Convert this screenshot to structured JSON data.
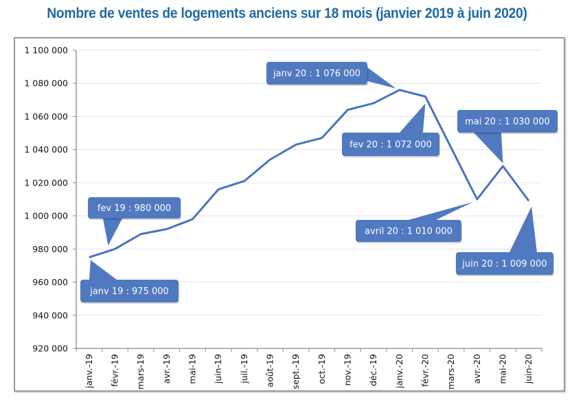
{
  "chart_data": {
    "type": "line",
    "title": "Nombre de ventes de logements anciens sur 18 mois (janvier 2019 à juin 2020)",
    "xlabel": "",
    "ylabel": "",
    "categories": [
      "janv.-19",
      "févr.-19",
      "mars-19",
      "avr.-19",
      "mai-19",
      "juin-19",
      "juil.-19",
      "août-19",
      "sept.-19",
      "oct.-19",
      "nov.-19",
      "déc.-19",
      "janv.-20",
      "févr.-20",
      "mars-20",
      "avr.-20",
      "mai-20",
      "juin-20"
    ],
    "series": [
      {
        "name": "Ventes de logements anciens",
        "color": "#4a72bf",
        "values": [
          975000,
          980000,
          989000,
          992000,
          998000,
          1016000,
          1021000,
          1034000,
          1043000,
          1047000,
          1064000,
          1068000,
          1076000,
          1072000,
          null,
          1010000,
          1030000,
          1009000
        ]
      }
    ],
    "ylim": [
      920000,
      1100000
    ],
    "yticks": [
      920000,
      940000,
      960000,
      980000,
      1000000,
      1020000,
      1040000,
      1060000,
      1080000,
      1100000
    ],
    "ytick_labels": [
      "920 000",
      "940 000",
      "960 000",
      "980 000",
      "1 000 000",
      "1 020 000",
      "1 040 000",
      "1 060 000",
      "1 080 000",
      "1 100 000"
    ],
    "grid": true,
    "legend": "none",
    "callout_color": "#5079c0",
    "annotations": [
      {
        "category_index": 0,
        "text": "janv 19 : 975 000"
      },
      {
        "category_index": 1,
        "text": "fev 19 : 980 000"
      },
      {
        "category_index": 12,
        "text": "janv 20 : 1 076 000"
      },
      {
        "category_index": 13,
        "text": "fev 20 : 1 072 000"
      },
      {
        "category_index": 15,
        "text": "avril 20 : 1 010 000"
      },
      {
        "category_index": 16,
        "text": "mai  20 : 1 030 000"
      },
      {
        "category_index": 17,
        "text": "juin 20 : 1 009 000"
      }
    ]
  }
}
